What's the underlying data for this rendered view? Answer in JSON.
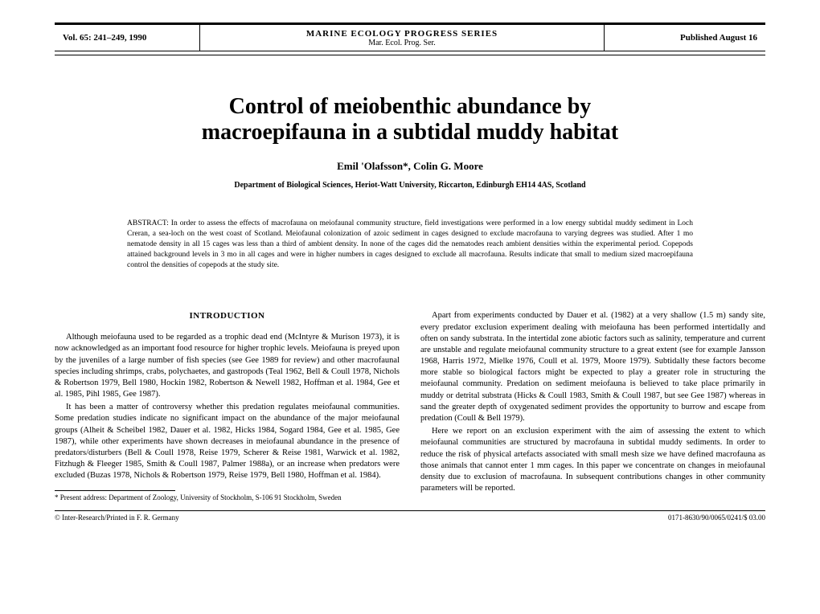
{
  "header": {
    "volume": "Vol. 65: 241–249, 1990",
    "series_main": "MARINE  ECOLOGY  PROGRESS  SERIES",
    "series_sub": "Mar. Ecol. Prog. Ser.",
    "published": "Published August 16"
  },
  "title_line1": "Control of meiobenthic abundance by",
  "title_line2": "macroepifauna in a subtidal muddy habitat",
  "authors": "Emil 'Olafsson*, Colin G. Moore",
  "affiliation": "Department of Biological Sciences, Heriot-Watt University, Riccarton, Edinburgh EH14 4AS, Scotland",
  "abstract": "ABSTRACT: In order to assess the effects of macrofauna on meiofaunal community structure, field investigations were performed in a low energy subtidal muddy sediment in Loch Creran, a sea-loch on the west coast of Scotland. Meiofaunal colonization of azoic sediment in cages designed to exclude macrofauna to varying degrees was studied. After 1 mo nematode density in all 15 cages was less than a third of ambient density. In none of the cages did the nematodes reach ambient densities within the experimental period. Copepods attained background levels in 3 mo in all cages and were in higher numbers in cages designed to exclude all macrofauna. Results indicate that small to medium sized macroepifauna control the densities of copepods at the study site.",
  "intro_heading": "INTRODUCTION",
  "left_p1": "Although meiofauna used to be regarded as a trophic dead end (McIntyre & Murison 1973), it is now acknowledged as an important food resource for higher trophic levels. Meiofauna is preyed upon by the juveniles of a large number of fish species (see Gee 1989 for review) and other macrofaunal species including shrimps, crabs, polychaetes, and gastropods (Teal 1962, Bell & Coull 1978, Nichols & Robertson 1979, Bell 1980, Hockin 1982, Robertson & Newell 1982, Hoffman et al. 1984, Gee et al. 1985, Pihl 1985, Gee 1987).",
  "left_p2": "It has been a matter of controversy whether this predation regulates meiofaunal communities. Some predation studies indicate no significant impact on the abundance of the major meiofaunal groups (Alheit & Scheibel 1982, Dauer et al. 1982, Hicks 1984, Sogard 1984, Gee et al. 1985, Gee 1987), while other experiments have shown decreases in meiofaunal abundance in the presence of predators/disturbers (Bell & Coull 1978, Reise 1979, Scherer & Reise 1981, Warwick et al. 1982, Fitzhugh & Fleeger 1985, Smith & Coull 1987, Palmer 1988a), or an increase when predators were excluded (Buzas 1978, Nichols & Robertson 1979, Reise 1979, Bell 1980, Hoffman et al. 1984).",
  "left_footnote": "* Present address: Department of Zoology, University of Stockholm, S-106 91 Stockholm, Sweden",
  "right_p1": "Apart from experiments conducted by Dauer et al. (1982) at a very shallow (1.5 m) sandy site, every predator exclusion experiment dealing with meiofauna has been performed intertidally and often on sandy substrata. In the intertidal zone abiotic factors such as salinity, temperature and current are unstable and regulate meiofaunal community structure to a great extent (see for example Jansson 1968, Harris 1972, Mielke 1976, Coull et al. 1979, Moore 1979). Subtidally these factors become more stable so biological factors might be expected to play a greater role in structuring the meiofaunal community. Predation on sediment meiofauna is believed to take place primarily in muddy or detrital substrata (Hicks & Coull 1983, Smith & Coull 1987, but see Gee 1987) whereas in sand the greater depth of oxygenated sediment provides the opportunity to burrow and escape from predation (Coull & Bell 1979).",
  "right_p2": "Here we report on an exclusion experiment with the aim of assessing the extent to which meiofaunal communities are structured by macrofauna in subtidal muddy sediments. In order to reduce the risk of physical artefacts associated with small mesh size we have defined macrofauna as those animals that cannot enter 1 mm cages. In this paper we concentrate on changes in meiofaunal density due to exclusion of macrofauna. In subsequent contributions changes in other community parameters will be reported.",
  "footer_left": "© Inter-Research/Printed in F. R. Germany",
  "footer_right": "0171-8630/90/0065/0241/$ 03.00"
}
